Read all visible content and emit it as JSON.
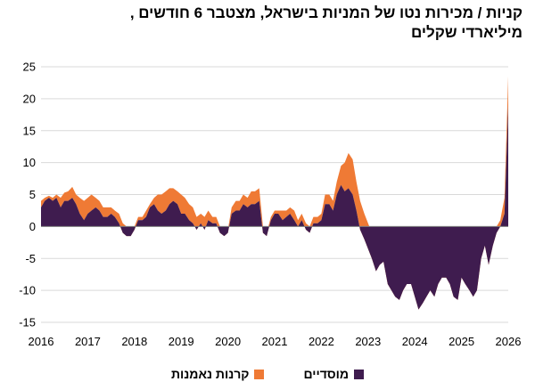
{
  "chart_data": {
    "type": "area",
    "title": "קניות / מכירות נטו של המניות בישראל, מצטבר 6 חודשים ,",
    "subtitle": "מיליארדי שקלים",
    "xlabel": "",
    "ylabel": "",
    "xlim": [
      2016,
      2026
    ],
    "ylim": [
      -15,
      25
    ],
    "yticks": [
      -15,
      -10,
      -5,
      0,
      5,
      10,
      15,
      20,
      25
    ],
    "xticks": [
      2016,
      2017,
      2018,
      2019,
      2020,
      2021,
      2022,
      2023,
      2024,
      2025,
      2026
    ],
    "grid": "horizontal",
    "legend_position": "bottom",
    "stacked": true,
    "x": [
      2016.0,
      2016.08,
      2016.17,
      2016.25,
      2016.33,
      2016.42,
      2016.5,
      2016.58,
      2016.67,
      2016.75,
      2016.83,
      2016.92,
      2017.0,
      2017.08,
      2017.17,
      2017.25,
      2017.33,
      2017.42,
      2017.5,
      2017.58,
      2017.67,
      2017.75,
      2017.83,
      2017.92,
      2018.0,
      2018.08,
      2018.17,
      2018.25,
      2018.33,
      2018.42,
      2018.5,
      2018.58,
      2018.67,
      2018.75,
      2018.83,
      2018.92,
      2019.0,
      2019.08,
      2019.17,
      2019.25,
      2019.33,
      2019.42,
      2019.5,
      2019.58,
      2019.67,
      2019.75,
      2019.83,
      2019.92,
      2020.0,
      2020.08,
      2020.17,
      2020.25,
      2020.33,
      2020.42,
      2020.5,
      2020.58,
      2020.67,
      2020.75,
      2020.83,
      2020.92,
      2021.0,
      2021.08,
      2021.17,
      2021.25,
      2021.33,
      2021.42,
      2021.5,
      2021.58,
      2021.67,
      2021.75,
      2021.83,
      2021.92,
      2022.0,
      2022.08,
      2022.17,
      2022.25,
      2022.33,
      2022.42,
      2022.5,
      2022.58,
      2022.67,
      2022.75,
      2022.83,
      2022.92,
      2023.0,
      2023.08,
      2023.17,
      2023.25,
      2023.33,
      2023.42,
      2023.5,
      2023.58,
      2023.67,
      2023.75,
      2023.83,
      2023.92,
      2024.0,
      2024.08,
      2024.17,
      2024.25,
      2024.33,
      2024.42,
      2024.5,
      2024.58,
      2024.67,
      2024.75,
      2024.83,
      2024.92,
      2025.0,
      2025.08,
      2025.17,
      2025.25,
      2025.33,
      2025.42,
      2025.5,
      2025.58,
      2025.67,
      2025.75,
      2025.83,
      2025.92,
      2026.0
    ],
    "series": [
      {
        "name": "מוסדיים",
        "color": "#3f1c4f",
        "values": [
          3,
          4,
          4.5,
          4,
          4.5,
          3,
          4,
          4,
          4.5,
          3.5,
          2,
          1,
          2,
          2.5,
          3,
          2.5,
          1.5,
          1.5,
          2,
          1.5,
          0.5,
          -1,
          -1.5,
          -1.5,
          -0.5,
          1,
          1,
          1.5,
          3,
          3.5,
          2.5,
          2,
          2.5,
          3.5,
          4,
          3.5,
          2,
          2,
          1,
          0.5,
          -0.5,
          0.5,
          -0.5,
          1,
          0.5,
          0.5,
          -1,
          -1.5,
          -1,
          2,
          2.5,
          2.5,
          3.5,
          3,
          3.5,
          3.5,
          4,
          -1,
          -1.5,
          1,
          2,
          2,
          1,
          1.5,
          2,
          1,
          0,
          1,
          -0.5,
          -1,
          0.5,
          0.5,
          1,
          3.5,
          3.5,
          2.5,
          5,
          6.5,
          5.5,
          6,
          5,
          2.5,
          -0.5,
          -2,
          -3.5,
          -5,
          -7,
          -6,
          -5.5,
          -9,
          -10,
          -11,
          -11.5,
          -10,
          -9,
          -9,
          -11,
          -13,
          -12,
          -11,
          -10,
          -11,
          -9,
          -8,
          -8,
          -9,
          -11,
          -11.5,
          -8,
          -9,
          -10,
          -11,
          -10,
          -5,
          -3,
          -6,
          -3,
          -1,
          0,
          2,
          19
        ]
      },
      {
        "name": "קרנות נאמנות",
        "color": "#ef7a35",
        "values": [
          1,
          0.5,
          0.3,
          0.5,
          0.5,
          1.5,
          1.3,
          1.5,
          1.7,
          1.5,
          2.5,
          3,
          2.5,
          2.5,
          1.5,
          1.5,
          1.5,
          1.5,
          1,
          1,
          1.5,
          1.5,
          1.5,
          1.5,
          0.5,
          0.5,
          0.5,
          1,
          0.5,
          1,
          2.5,
          3,
          3,
          2.5,
          2,
          2,
          3,
          2.5,
          2.5,
          2.5,
          2,
          1.5,
          2,
          1.5,
          1,
          1,
          1,
          0.5,
          0.5,
          1,
          1.5,
          1.5,
          1.5,
          1.5,
          2,
          2,
          2,
          1,
          0.5,
          0.5,
          0.5,
          0.5,
          1.5,
          1,
          1,
          1.5,
          1,
          1,
          1,
          1,
          1,
          1,
          1,
          1.5,
          1.5,
          1.5,
          2,
          3,
          4.5,
          5.5,
          5.5,
          4.5,
          4.5,
          4,
          4,
          4,
          3,
          3.5,
          2.5,
          3,
          3,
          3,
          3,
          2.5,
          2,
          2,
          1.5,
          0.5,
          0.5,
          1,
          1,
          1.5,
          1.5,
          1,
          1,
          1,
          0.5,
          0.5,
          1,
          1,
          1.5,
          1.5,
          2,
          1.5,
          1.5,
          1.5,
          1.5,
          1,
          1,
          2.5,
          4.5
        ]
      }
    ]
  }
}
